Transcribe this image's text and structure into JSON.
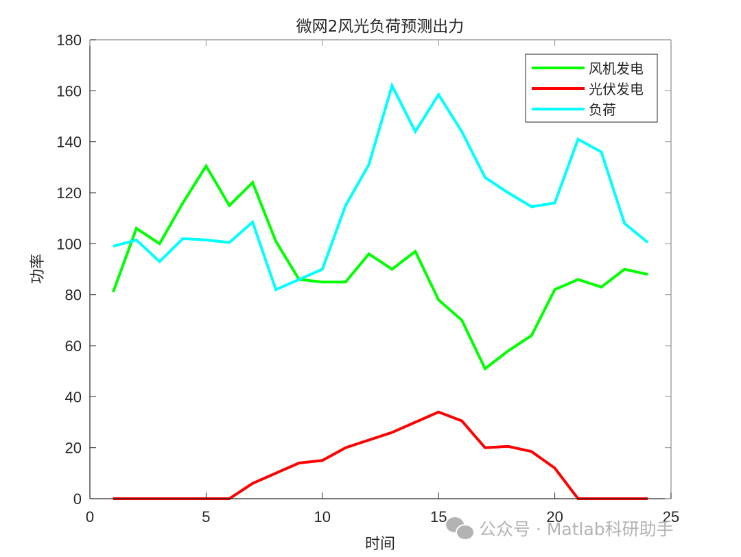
{
  "chart_data": {
    "type": "line",
    "title": "微网2风光负荷预测出力",
    "xlabel": "时间",
    "ylabel": "功率",
    "xlim": [
      0,
      25
    ],
    "ylim": [
      0,
      180
    ],
    "xticks": [
      0,
      5,
      10,
      15,
      20,
      25
    ],
    "yticks": [
      0,
      20,
      40,
      60,
      80,
      100,
      120,
      140,
      160,
      180
    ],
    "grid": false,
    "legend_position": "northeast",
    "x": [
      1,
      2,
      3,
      4,
      5,
      6,
      7,
      8,
      9,
      10,
      11,
      12,
      13,
      14,
      15,
      16,
      17,
      18,
      19,
      20,
      21,
      22,
      23,
      24
    ],
    "series": [
      {
        "name": "风机发电",
        "color": "#00ff00",
        "values": [
          81,
          106,
          100,
          116,
          130.5,
          115,
          124,
          101,
          86,
          85,
          85,
          96,
          90,
          97,
          78,
          70,
          51,
          58,
          64,
          82,
          86,
          83,
          90,
          88
        ]
      },
      {
        "name": "光伏发电",
        "color": "#ff0000",
        "values": [
          0,
          0,
          0,
          0,
          0,
          0,
          6,
          10,
          14,
          15,
          20,
          23,
          26,
          30,
          34,
          30.5,
          20,
          20.5,
          18.5,
          12,
          0,
          0,
          0,
          0
        ]
      },
      {
        "name": "负荷",
        "color": "#00ffff",
        "values": [
          99,
          101.5,
          93,
          102,
          101.5,
          100.5,
          108.5,
          82,
          86,
          90,
          115,
          131,
          162,
          144,
          158.5,
          144,
          126,
          120,
          114.5,
          116,
          141,
          136,
          108,
          100.5
        ]
      }
    ]
  },
  "watermark": {
    "icon": "wechat-icon",
    "text": "公众号 · Matlab科研助手"
  }
}
